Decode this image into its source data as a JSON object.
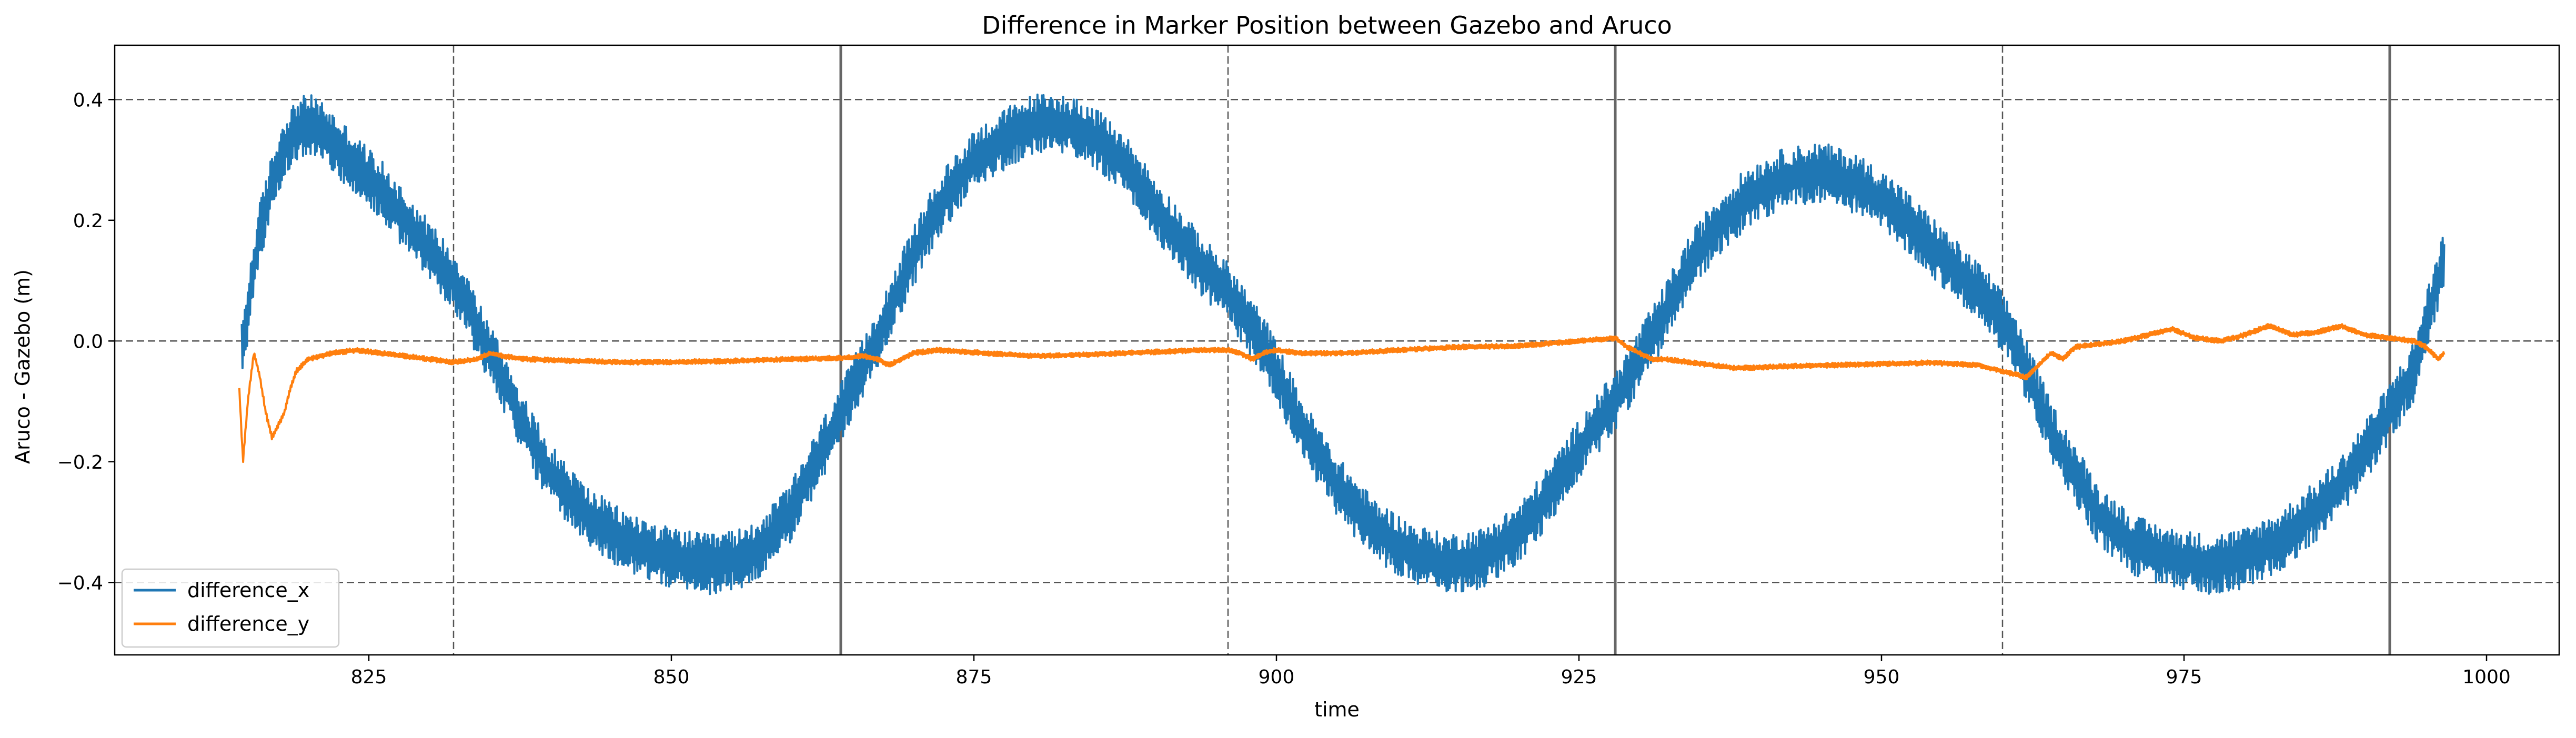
{
  "chart_data": {
    "type": "line",
    "title": "Difference in Marker Position between Gazebo and Aruco",
    "xlabel": "time",
    "ylabel": "Aruco - Gazebo (m)",
    "xlim": [
      804,
      1006
    ],
    "ylim": [
      -0.52,
      0.49
    ],
    "xticks": [
      825,
      850,
      875,
      900,
      925,
      950,
      975,
      1000
    ],
    "yticks": [
      -0.4,
      -0.2,
      0.0,
      0.2,
      0.4
    ],
    "xtick_labels": [
      "825",
      "850",
      "875",
      "900",
      "925",
      "950",
      "975",
      "1000"
    ],
    "ytick_labels": [
      "−0.4",
      "−0.2",
      "0.0",
      "0.2",
      "0.4"
    ],
    "grid": "dashed lines at y = -0.4, 0.0, 0.4",
    "legend_position": "lower-left",
    "reference_lines": {
      "dashed_vertical_x": [
        832,
        896,
        960
      ],
      "solid_vertical_x": [
        864,
        928,
        992
      ],
      "dashed_horizontal_y": [
        -0.4,
        0.0,
        0.4
      ]
    },
    "series": [
      {
        "name": "difference_x",
        "color": "#1f77b4",
        "x": [
          814.5,
          815,
          815.5,
          816,
          817,
          818,
          819,
          820,
          821,
          822,
          824,
          826,
          828,
          830,
          832,
          833,
          834,
          836,
          838,
          840,
          843,
          846,
          850,
          853,
          856,
          858,
          860,
          862,
          864,
          866,
          868,
          870,
          872,
          875,
          878,
          880,
          882,
          884,
          886,
          888,
          890,
          892,
          894,
          896,
          897,
          898,
          899,
          900,
          902,
          905,
          908,
          911,
          914,
          917,
          920,
          922,
          924,
          926,
          928,
          930,
          932,
          934,
          936,
          939,
          942,
          945,
          948,
          951,
          953,
          955,
          957,
          959,
          960,
          961,
          962,
          963,
          964,
          966,
          968,
          971,
          974,
          977,
          980,
          983,
          986,
          988,
          990,
          992,
          994,
          995,
          996,
          996.5
        ],
        "y": [
          -0.02,
          0.05,
          0.12,
          0.18,
          0.26,
          0.32,
          0.35,
          0.36,
          0.35,
          0.33,
          0.29,
          0.25,
          0.2,
          0.15,
          0.1,
          0.07,
          0.02,
          -0.06,
          -0.15,
          -0.22,
          -0.29,
          -0.33,
          -0.36,
          -0.37,
          -0.36,
          -0.33,
          -0.28,
          -0.2,
          -0.12,
          -0.04,
          0.05,
          0.14,
          0.22,
          0.3,
          0.34,
          0.36,
          0.36,
          0.35,
          0.32,
          0.28,
          0.22,
          0.17,
          0.12,
          0.08,
          0.05,
          0.02,
          -0.01,
          -0.05,
          -0.14,
          -0.24,
          -0.31,
          -0.35,
          -0.37,
          -0.36,
          -0.32,
          -0.27,
          -0.21,
          -0.15,
          -0.1,
          -0.03,
          0.04,
          0.12,
          0.18,
          0.24,
          0.27,
          0.28,
          0.26,
          0.22,
          0.18,
          0.14,
          0.1,
          0.06,
          0.03,
          0.0,
          -0.05,
          -0.1,
          -0.15,
          -0.22,
          -0.29,
          -0.34,
          -0.36,
          -0.37,
          -0.36,
          -0.33,
          -0.28,
          -0.24,
          -0.18,
          -0.12,
          -0.05,
          0.03,
          0.1,
          0.14
        ],
        "noise_amplitude": 0.05
      },
      {
        "name": "difference_y",
        "color": "#ff7f0e",
        "x": [
          814.3,
          814.6,
          815,
          815.5,
          816,
          816.5,
          817,
          817.5,
          818,
          818.5,
          819,
          820,
          822,
          824,
          826,
          828,
          830,
          832,
          834,
          835,
          836,
          838,
          842,
          846,
          850,
          855,
          860,
          864,
          866,
          867,
          868,
          869,
          870,
          872,
          876,
          880,
          885,
          890,
          894,
          896,
          897,
          898,
          899,
          900,
          902,
          906,
          910,
          915,
          920,
          925,
          928,
          929,
          930,
          931,
          932,
          934,
          938,
          942,
          946,
          950,
          954,
          958,
          960,
          962,
          963,
          964,
          965,
          966,
          968,
          970,
          972,
          974,
          976,
          978,
          980,
          982,
          984,
          986,
          988,
          990,
          992,
          994,
          995,
          996,
          996.5
        ],
        "y": [
          -0.08,
          -0.2,
          -0.1,
          -0.02,
          -0.06,
          -0.12,
          -0.16,
          -0.14,
          -0.12,
          -0.08,
          -0.05,
          -0.03,
          -0.02,
          -0.015,
          -0.02,
          -0.025,
          -0.03,
          -0.035,
          -0.03,
          -0.02,
          -0.025,
          -0.03,
          -0.033,
          -0.035,
          -0.035,
          -0.033,
          -0.03,
          -0.028,
          -0.025,
          -0.03,
          -0.04,
          -0.03,
          -0.02,
          -0.015,
          -0.02,
          -0.025,
          -0.022,
          -0.018,
          -0.015,
          -0.015,
          -0.02,
          -0.03,
          -0.02,
          -0.015,
          -0.02,
          -0.02,
          -0.015,
          -0.01,
          -0.008,
          0.0,
          0.005,
          -0.01,
          -0.02,
          -0.03,
          -0.03,
          -0.035,
          -0.045,
          -0.042,
          -0.04,
          -0.038,
          -0.036,
          -0.04,
          -0.05,
          -0.06,
          -0.04,
          -0.02,
          -0.03,
          -0.01,
          -0.005,
          0.0,
          0.01,
          0.02,
          0.005,
          0.0,
          0.01,
          0.025,
          0.01,
          0.015,
          0.025,
          0.01,
          0.005,
          0.0,
          -0.01,
          -0.03,
          -0.02
        ],
        "noise_amplitude": 0.004
      }
    ]
  }
}
